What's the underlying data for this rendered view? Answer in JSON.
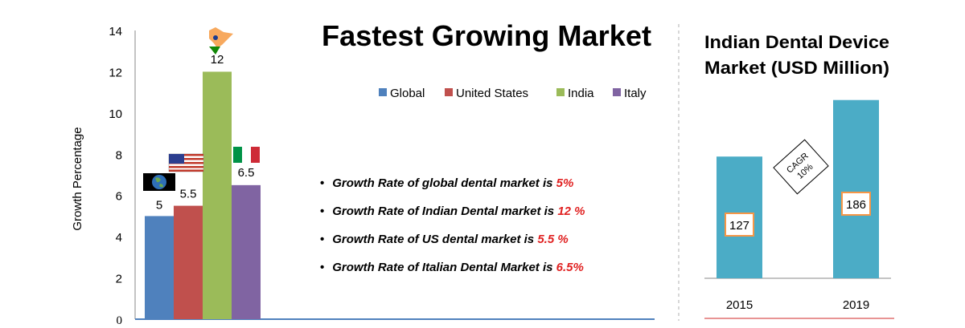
{
  "colors": {
    "global": "#4f81bd",
    "us": "#c0504d",
    "india": "#9bbb59",
    "italy": "#8064a2",
    "right_bar": "#4bacc6",
    "accent_red": "#e02020",
    "box_border": "#f79646"
  },
  "chart_data": [
    {
      "type": "bar",
      "title": "Fastest Growing Market",
      "xlabel": "",
      "ylabel": "Growth Percentage",
      "ylim": [
        0,
        14
      ],
      "yticks": [
        "0",
        "2",
        "4",
        "6",
        "8",
        "10",
        "12",
        "14"
      ],
      "grid": false,
      "legend_position": "top-right",
      "series": [
        {
          "name": "Global",
          "values": [
            5
          ],
          "label": "5",
          "icon": "globe-icon"
        },
        {
          "name": "United States",
          "values": [
            5.5
          ],
          "label": "5.5",
          "icon": "us-flag-icon"
        },
        {
          "name": "India",
          "values": [
            12
          ],
          "label": "12",
          "icon": "india-map-icon"
        },
        {
          "name": "Italy",
          "values": [
            6.5
          ],
          "label": "6.5",
          "icon": "italy-flag-icon"
        }
      ]
    },
    {
      "type": "bar",
      "title": "Indian Dental Device Market (USD Million)",
      "categories": [
        "2015",
        "2019"
      ],
      "values": [
        127,
        186
      ],
      "value_labels": [
        "127",
        "186"
      ],
      "annotation": {
        "line1": "CAGR",
        "line2": "10%"
      }
    }
  ],
  "bullets": [
    {
      "text": "Growth Rate of global dental market is ",
      "value": "5%"
    },
    {
      "text": "Growth Rate of Indian Dental market is ",
      "value": "12 %"
    },
    {
      "text": "Growth Rate of US dental market is ",
      "value": "5.5 %"
    },
    {
      "text": "Growth Rate of Italian Dental Market is ",
      "value": "6.5%"
    }
  ],
  "right_title": {
    "line1": "Indian Dental Device",
    "line2": "Market (USD Million)"
  }
}
